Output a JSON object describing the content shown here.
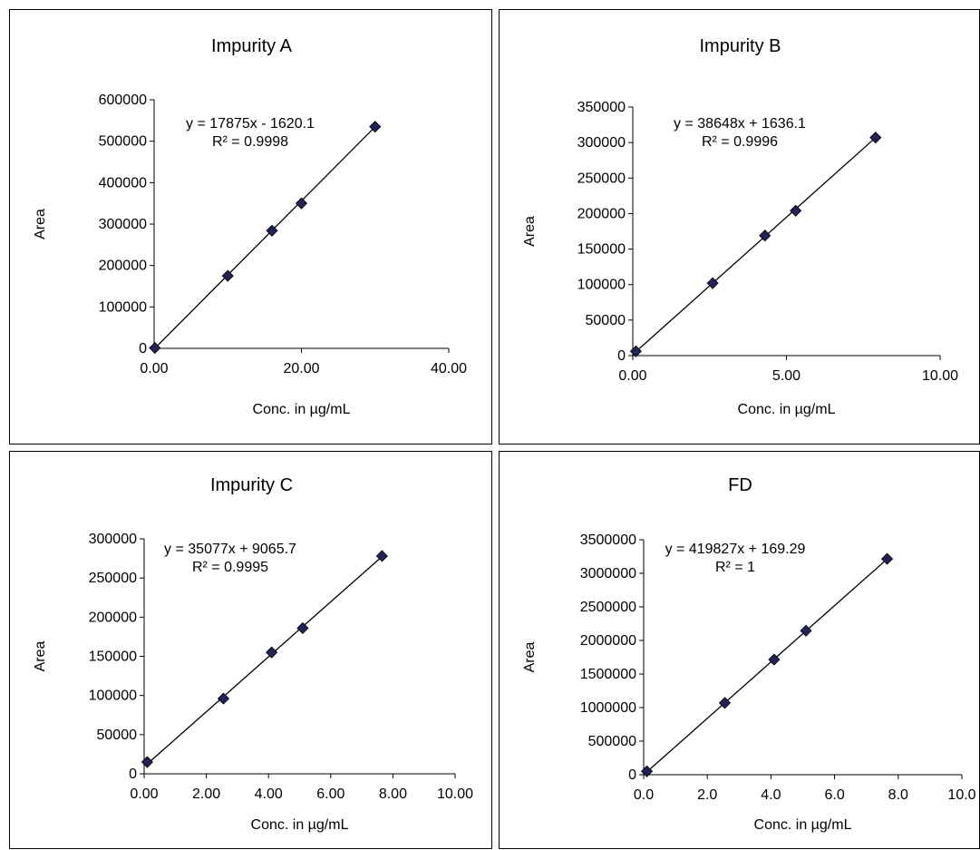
{
  "chart_data": [
    {
      "type": "scatter",
      "title": "Impurity A",
      "xlabel": "Conc. in µg/mL",
      "ylabel": "Area",
      "xlim": [
        0,
        40
      ],
      "ylim": [
        0,
        600000
      ],
      "xticks": [
        "0.00",
        "20.00",
        "40.00"
      ],
      "yticks": [
        "0",
        "100000",
        "200000",
        "300000",
        "400000",
        "500000",
        "600000"
      ],
      "points": [
        [
          0.1,
          1000
        ],
        [
          10,
          175000
        ],
        [
          16,
          284000
        ],
        [
          20,
          350000
        ],
        [
          30,
          535000
        ]
      ],
      "trendline": {
        "slope": 17875,
        "intercept": -1620.1,
        "x_range": [
          0.1,
          30
        ]
      },
      "equation": "y = 17875x - 1620.1",
      "r2": "R² = 0.9998",
      "marker_color": "#22225a",
      "grid": false,
      "legend": "none"
    },
    {
      "type": "scatter",
      "title": "Impurity B",
      "xlabel": "Conc. in µg/mL",
      "ylabel": "Area",
      "xlim": [
        0,
        10
      ],
      "ylim": [
        0,
        350000
      ],
      "xticks": [
        "0.00",
        "5.00",
        "10.00"
      ],
      "yticks": [
        "0",
        "50000",
        "100000",
        "150000",
        "200000",
        "250000",
        "300000",
        "350000"
      ],
      "points": [
        [
          0.1,
          6000
        ],
        [
          2.6,
          102000
        ],
        [
          4.3,
          169000
        ],
        [
          5.3,
          204000
        ],
        [
          7.9,
          307000
        ]
      ],
      "trendline": {
        "slope": 38648,
        "intercept": 1636.1,
        "x_range": [
          0.1,
          7.9
        ]
      },
      "equation": "y = 38648x + 1636.1",
      "r2": "R² = 0.9996",
      "marker_color": "#22225a",
      "grid": false,
      "legend": "none"
    },
    {
      "type": "scatter",
      "title": "Impurity C",
      "xlabel": "Conc. in µg/mL",
      "ylabel": "Area",
      "xlim": [
        0,
        10
      ],
      "ylim": [
        0,
        300000
      ],
      "xticks": [
        "0.00",
        "2.00",
        "4.00",
        "6.00",
        "8.00",
        "10.00"
      ],
      "yticks": [
        "0",
        "50000",
        "100000",
        "150000",
        "200000",
        "250000",
        "300000"
      ],
      "points": [
        [
          0.1,
          15000
        ],
        [
          2.55,
          96000
        ],
        [
          4.1,
          155000
        ],
        [
          5.1,
          186000
        ],
        [
          7.65,
          278000
        ]
      ],
      "trendline": {
        "slope": 35077,
        "intercept": 9065.7,
        "x_range": [
          0.1,
          7.65
        ]
      },
      "equation": "y = 35077x + 9065.7",
      "r2": "R² = 0.9995",
      "marker_color": "#22225a",
      "grid": false,
      "legend": "none"
    },
    {
      "type": "scatter",
      "title": "FD",
      "xlabel": "Conc. in µg/mL",
      "ylabel": "Area",
      "xlim": [
        0,
        10
      ],
      "ylim": [
        0,
        3500000
      ],
      "xticks": [
        "0.0",
        "2.0",
        "4.0",
        "6.0",
        "8.0",
        "10.0"
      ],
      "yticks": [
        "0",
        "500000",
        "1000000",
        "1500000",
        "2000000",
        "2500000",
        "3000000",
        "3500000"
      ],
      "points": [
        [
          0.1,
          50000
        ],
        [
          2.55,
          1070000
        ],
        [
          4.1,
          1715000
        ],
        [
          5.1,
          2145000
        ],
        [
          7.65,
          3215000
        ]
      ],
      "trendline": {
        "slope": 419827,
        "intercept": 169.29,
        "x_range": [
          0.1,
          7.65
        ]
      },
      "equation": "y = 419827x + 169.29",
      "r2": "R² = 1",
      "marker_color": "#22225a",
      "grid": false,
      "legend": "none"
    }
  ]
}
